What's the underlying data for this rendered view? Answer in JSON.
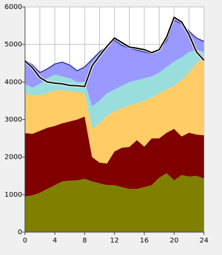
{
  "chart_data": {
    "type": "area",
    "stacked": true,
    "x": [
      0,
      1,
      2,
      3,
      4,
      5,
      6,
      7,
      8,
      9,
      10,
      11,
      12,
      13,
      14,
      15,
      16,
      17,
      18,
      19,
      20,
      21,
      22,
      23,
      24
    ],
    "series": [
      {
        "color": "#808000",
        "values": [
          950,
          980,
          1050,
          1150,
          1250,
          1350,
          1370,
          1380,
          1420,
          1350,
          1300,
          1250,
          1250,
          1200,
          1150,
          1150,
          1200,
          1250,
          1450,
          1570,
          1380,
          1520,
          1480,
          1500,
          1430
        ]
      },
      {
        "color": "#800000",
        "values": [
          1690,
          1640,
          1650,
          1630,
          1580,
          1550,
          1580,
          1620,
          1660,
          650,
          550,
          580,
          900,
          1050,
          1120,
          1300,
          1080,
          1250,
          1050,
          1080,
          1370,
          1030,
          1170,
          1100,
          1150
        ]
      },
      {
        "color": "#ffcc66",
        "values": [
          1060,
          1030,
          950,
          920,
          950,
          880,
          810,
          730,
          620,
          750,
          1050,
          1270,
          1080,
          1050,
          1110,
          980,
          1220,
          1080,
          1200,
          1150,
          1150,
          1500,
          1600,
          1900,
          2070
        ]
      },
      {
        "color": "#99dddd",
        "values": [
          250,
          200,
          300,
          400,
          420,
          370,
          340,
          270,
          300,
          600,
          600,
          600,
          570,
          600,
          620,
          620,
          600,
          570,
          550,
          600,
          650,
          600,
          550,
          350,
          150
        ]
      },
      {
        "color": "#9999ff",
        "values": [
          630,
          600,
          300,
          250,
          280,
          380,
          350,
          300,
          400,
          1250,
          1300,
          1250,
          1310,
          1080,
          900,
          800,
          700,
          600,
          600,
          700,
          1100,
          900,
          550,
          320,
          280
        ]
      },
      {
        "kind": "line",
        "color": "#000000",
        "values": [
          4560,
          4380,
          4120,
          4000,
          3970,
          3950,
          3910,
          3900,
          3880,
          4430,
          4700,
          4950,
          5170,
          5050,
          4930,
          4900,
          4860,
          4780,
          4860,
          5200,
          5720,
          5600,
          5260,
          4800,
          4580
        ]
      }
    ],
    "xlim": [
      0,
      24
    ],
    "xticks": [
      0,
      4,
      8,
      12,
      16,
      20,
      24
    ],
    "xgrid": [
      2,
      6,
      10,
      14,
      18,
      22
    ],
    "ylim": [
      0,
      6000
    ],
    "yticks": [
      0,
      1000,
      2000,
      3000,
      4000,
      5000,
      6000
    ],
    "grid": true
  }
}
